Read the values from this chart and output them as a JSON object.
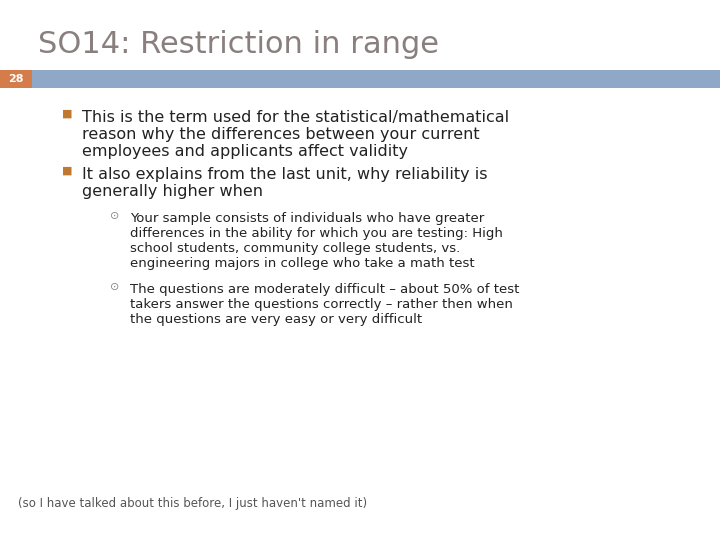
{
  "title": "SO14: Restriction in range",
  "title_color": "#8a7f7f",
  "title_fontsize": 22,
  "slide_number": "28",
  "slide_number_bg": "#d47c4a",
  "slide_number_color": "#ffffff",
  "header_bar_color": "#8fa8c8",
  "background_color": "#ffffff",
  "bullet1_line1": "This is the term used for the statistical/mathematical",
  "bullet1_line2": "reason why the differences between your current",
  "bullet1_line3": "employees and applicants affect validity",
  "bullet2_line1": "It also explains from the last unit, why reliability is",
  "bullet2_line2": "generally higher when",
  "sub1_line1": "Your sample consists of individuals who have greater",
  "sub1_line2": "differences in the ability for which you are testing: High",
  "sub1_line3": "school students, community college students, vs.",
  "sub1_line4": "engineering majors in college who take a math test",
  "sub2_line1": "The questions are moderately difficult – about 50% of test",
  "sub2_line2": "takers answer the questions correctly – rather then when",
  "sub2_line3": "the questions are very easy or very difficult",
  "footnote": "(so I have talked about this before, I just haven't named it)",
  "text_color": "#222222",
  "footnote_color": "#555555",
  "bullet_marker": "■",
  "sub_marker": "⊙",
  "bullet_marker_color": "#c07830",
  "sub_marker_color": "#888888"
}
